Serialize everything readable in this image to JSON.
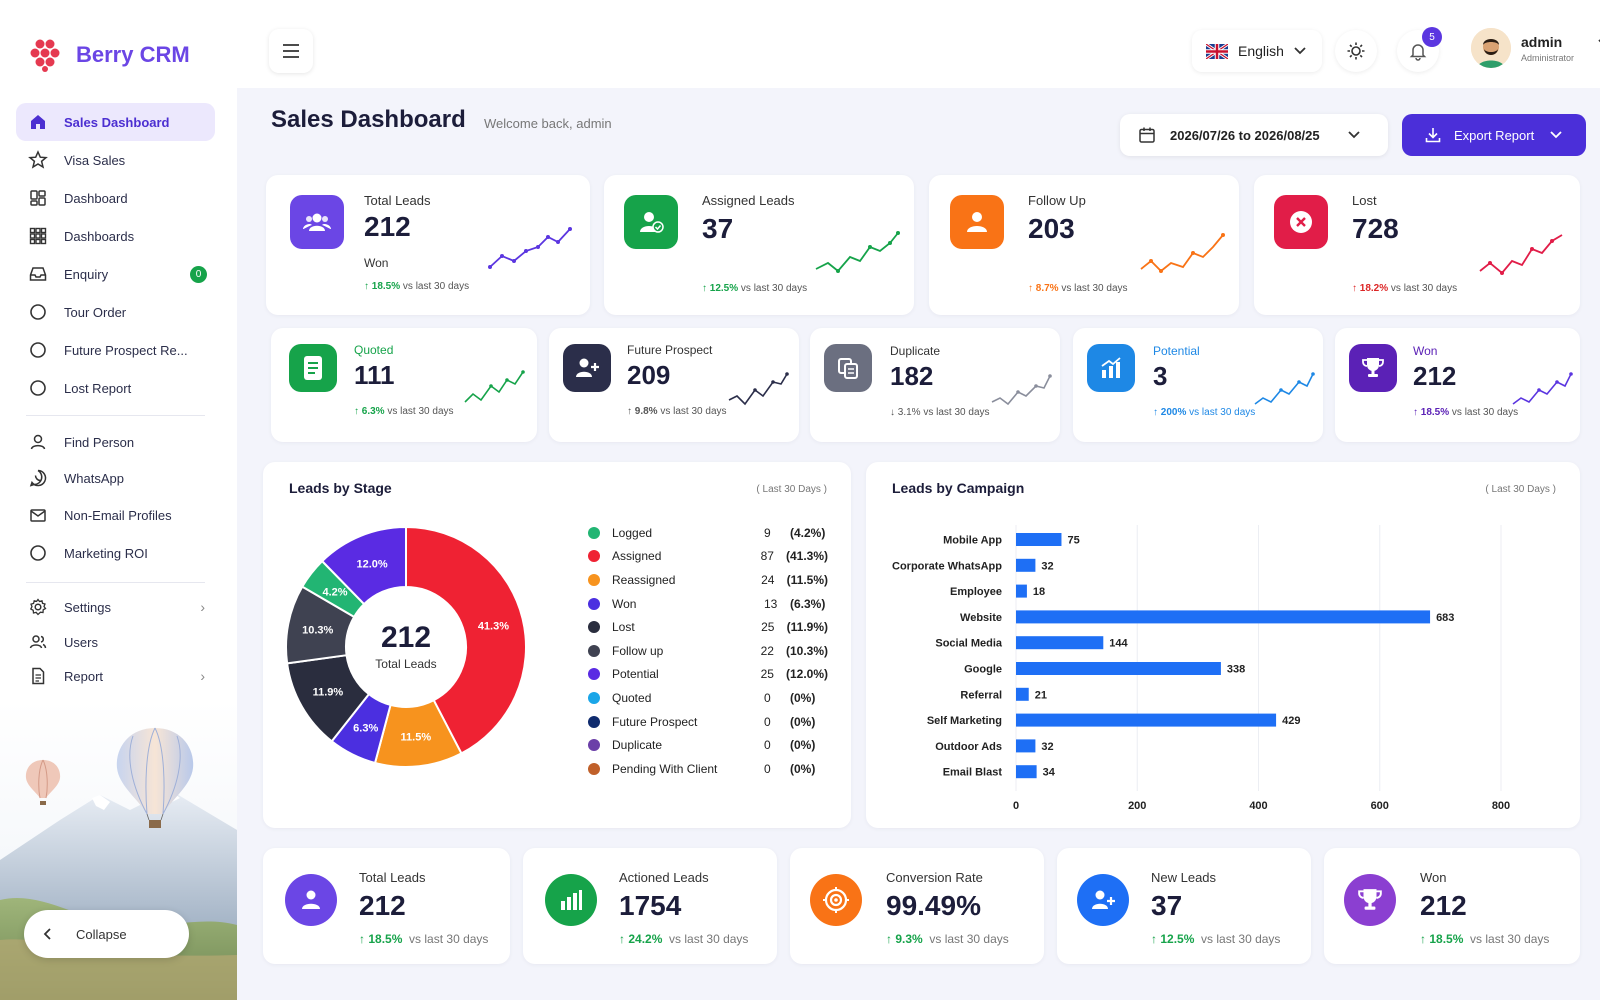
{
  "brand": {
    "name": "Berry CRM",
    "accent": "#6b46e5"
  },
  "sidebar": {
    "items": [
      {
        "label": "Sales Dashboard",
        "icon": "home-icon",
        "active": true
      },
      {
        "label": "Visa Sales",
        "icon": "star-icon"
      },
      {
        "label": "Dashboard",
        "icon": "dashboard-icon"
      },
      {
        "label": "Dashboards",
        "icon": "grid-icon"
      },
      {
        "label": "Enquiry",
        "icon": "inbox-icon",
        "badge": "0"
      },
      {
        "label": "Tour Order",
        "icon": "circle-icon"
      },
      {
        "label": "Future Prospect Re...",
        "icon": "circle-icon"
      },
      {
        "label": "Lost Report",
        "icon": "circle-icon"
      }
    ],
    "items2": [
      {
        "label": "Find Person",
        "icon": "person-icon"
      },
      {
        "label": "WhatsApp",
        "icon": "whatsapp-icon"
      },
      {
        "label": "Non-Email Profiles",
        "icon": "mail-icon"
      },
      {
        "label": "Marketing ROI",
        "icon": "circle-icon"
      }
    ],
    "items3": [
      {
        "label": "Settings",
        "icon": "gear-icon",
        "chevron": true
      },
      {
        "label": "Users",
        "icon": "users-icon"
      },
      {
        "label": "Report",
        "icon": "file-icon",
        "chevron": true
      }
    ],
    "collapse_label": "Collapse"
  },
  "header": {
    "language": "English",
    "notification_count": "5",
    "user_name": "admin",
    "user_role": "Administrator"
  },
  "page": {
    "title": "Sales Dashboard",
    "welcome": "Welcome back, admin",
    "date_range": "2026/07/26 to 2026/08/25",
    "export_label": "Export Report"
  },
  "kpi_row1": [
    {
      "label": "Total Leads",
      "value": "212",
      "sub": "Won",
      "change": "18.5%",
      "suffix": "vs last 30 days",
      "color": "#6b46e5",
      "trend": "up"
    },
    {
      "label": "Assigned Leads",
      "value": "37",
      "change": "12.5%",
      "suffix": "vs last 30 days",
      "color": "#16a34a",
      "trend": "up"
    },
    {
      "label": "Follow Up",
      "value": "203",
      "change": "8.7%",
      "suffix": "vs last 30 days",
      "color": "#f97316",
      "trend": "up"
    },
    {
      "label": "Lost",
      "value": "728",
      "change": "18.2%",
      "suffix": "vs last 30 days",
      "color": "#e11d48",
      "trend": "up"
    }
  ],
  "kpi_row2": [
    {
      "label": "Quoted",
      "value": "111",
      "change": "6.3%",
      "suffix": "vs last 30 days",
      "color": "#16a34a",
      "trend": "up"
    },
    {
      "label": "Future Prospect",
      "value": "209",
      "change": "9.8%",
      "suffix": "vs last 30 days",
      "color": "#2b2e4a",
      "trend": "up"
    },
    {
      "label": "Duplicate",
      "value": "182",
      "change": "3.1%",
      "suffix": "vs last 30 days",
      "color": "#6b6f80",
      "trend": "down"
    },
    {
      "label": "Potential",
      "value": "3",
      "change": "200%",
      "suffix": "vs last 30 days",
      "color": "#1e88e5",
      "trend": "up"
    },
    {
      "label": "Won",
      "value": "212",
      "change": "18.5%",
      "suffix": "vs last 30 days",
      "color": "#5b21b6",
      "trend": "up"
    }
  ],
  "stage": {
    "title": "Leads by Stage",
    "note": "( Last 30 Days )",
    "center_value": "212",
    "center_label": "Total Leads",
    "slice_labels": [
      "41.3%",
      "11.5%",
      "6.3%",
      "11.9%",
      "10.3%",
      "4.2%",
      "12.0%"
    ]
  },
  "bottom_cards": [
    {
      "label": "Total Leads",
      "value": "212",
      "change": "18.5%",
      "suffix": "vs last 30 days",
      "color": "#6b46e5"
    },
    {
      "label": "Actioned Leads",
      "value": "1754",
      "change": "24.2%",
      "suffix": "vs last 30 days",
      "color": "#16a34a"
    },
    {
      "label": "Conversion Rate",
      "value": "99.49%",
      "change": "9.3%",
      "suffix": "vs last 30 days",
      "color": "#f97316"
    },
    {
      "label": "New Leads",
      "value": "37",
      "change": "12.5%",
      "suffix": "vs last 30 days",
      "color": "#1e6ff5"
    },
    {
      "label": "Won",
      "value": "212",
      "change": "18.5%",
      "suffix": "vs last 30 days",
      "color": "#8b3fd1"
    }
  ],
  "chart_data": [
    {
      "type": "pie",
      "title": "Leads by Stage",
      "total": 212,
      "series": [
        {
          "name": "Logged",
          "count": 9,
          "pct": "(4.2%)",
          "value": 4.2,
          "color": "#22b573"
        },
        {
          "name": "Assigned",
          "count": 87,
          "pct": "(41.3%)",
          "value": 41.3,
          "color": "#ef2233"
        },
        {
          "name": "Reassigned",
          "count": 24,
          "pct": "(11.5%)",
          "value": 11.5,
          "color": "#f7931e"
        },
        {
          "name": "Won",
          "count": 13,
          "pct": "(6.3%)",
          "value": 6.3,
          "color": "#4b2fe0"
        },
        {
          "name": "Lost",
          "count": 25,
          "pct": "(11.9%)",
          "value": 11.9,
          "color": "#2a2d3e"
        },
        {
          "name": "Follow up",
          "count": 22,
          "pct": "(10.3%)",
          "value": 10.3,
          "color": "#3f4251"
        },
        {
          "name": "Potential",
          "count": 25,
          "pct": "(12.0%)",
          "value": 12.0,
          "color": "#5a2be3"
        },
        {
          "name": "Quoted",
          "count": 0,
          "pct": "(0%)",
          "value": 0,
          "color": "#1aa6e8"
        },
        {
          "name": "Future Prospect",
          "count": 0,
          "pct": "(0%)",
          "value": 0,
          "color": "#0f2b6e"
        },
        {
          "name": "Duplicate",
          "count": 0,
          "pct": "(0%)",
          "value": 0,
          "color": "#6b3fa8"
        },
        {
          "name": "Pending With Client",
          "count": 0,
          "pct": "(0%)",
          "value": 0,
          "color": "#c0602a"
        }
      ]
    },
    {
      "type": "bar",
      "orientation": "horizontal",
      "title": "Leads by Campaign",
      "note": "( Last 30 Days )",
      "categories": [
        "Mobile App",
        "Corporate WhatsApp",
        "Employee",
        "Website",
        "Social Media",
        "Google",
        "Referral",
        "Self Marketing",
        "Outdoor Ads",
        "Email Blast"
      ],
      "values": [
        75,
        32,
        18,
        683,
        144,
        338,
        21,
        429,
        32,
        34
      ],
      "xlim": [
        0,
        800
      ],
      "xticks": [
        0,
        200,
        400,
        600,
        800
      ],
      "color": "#1e6ff5",
      "grid": true
    }
  ]
}
